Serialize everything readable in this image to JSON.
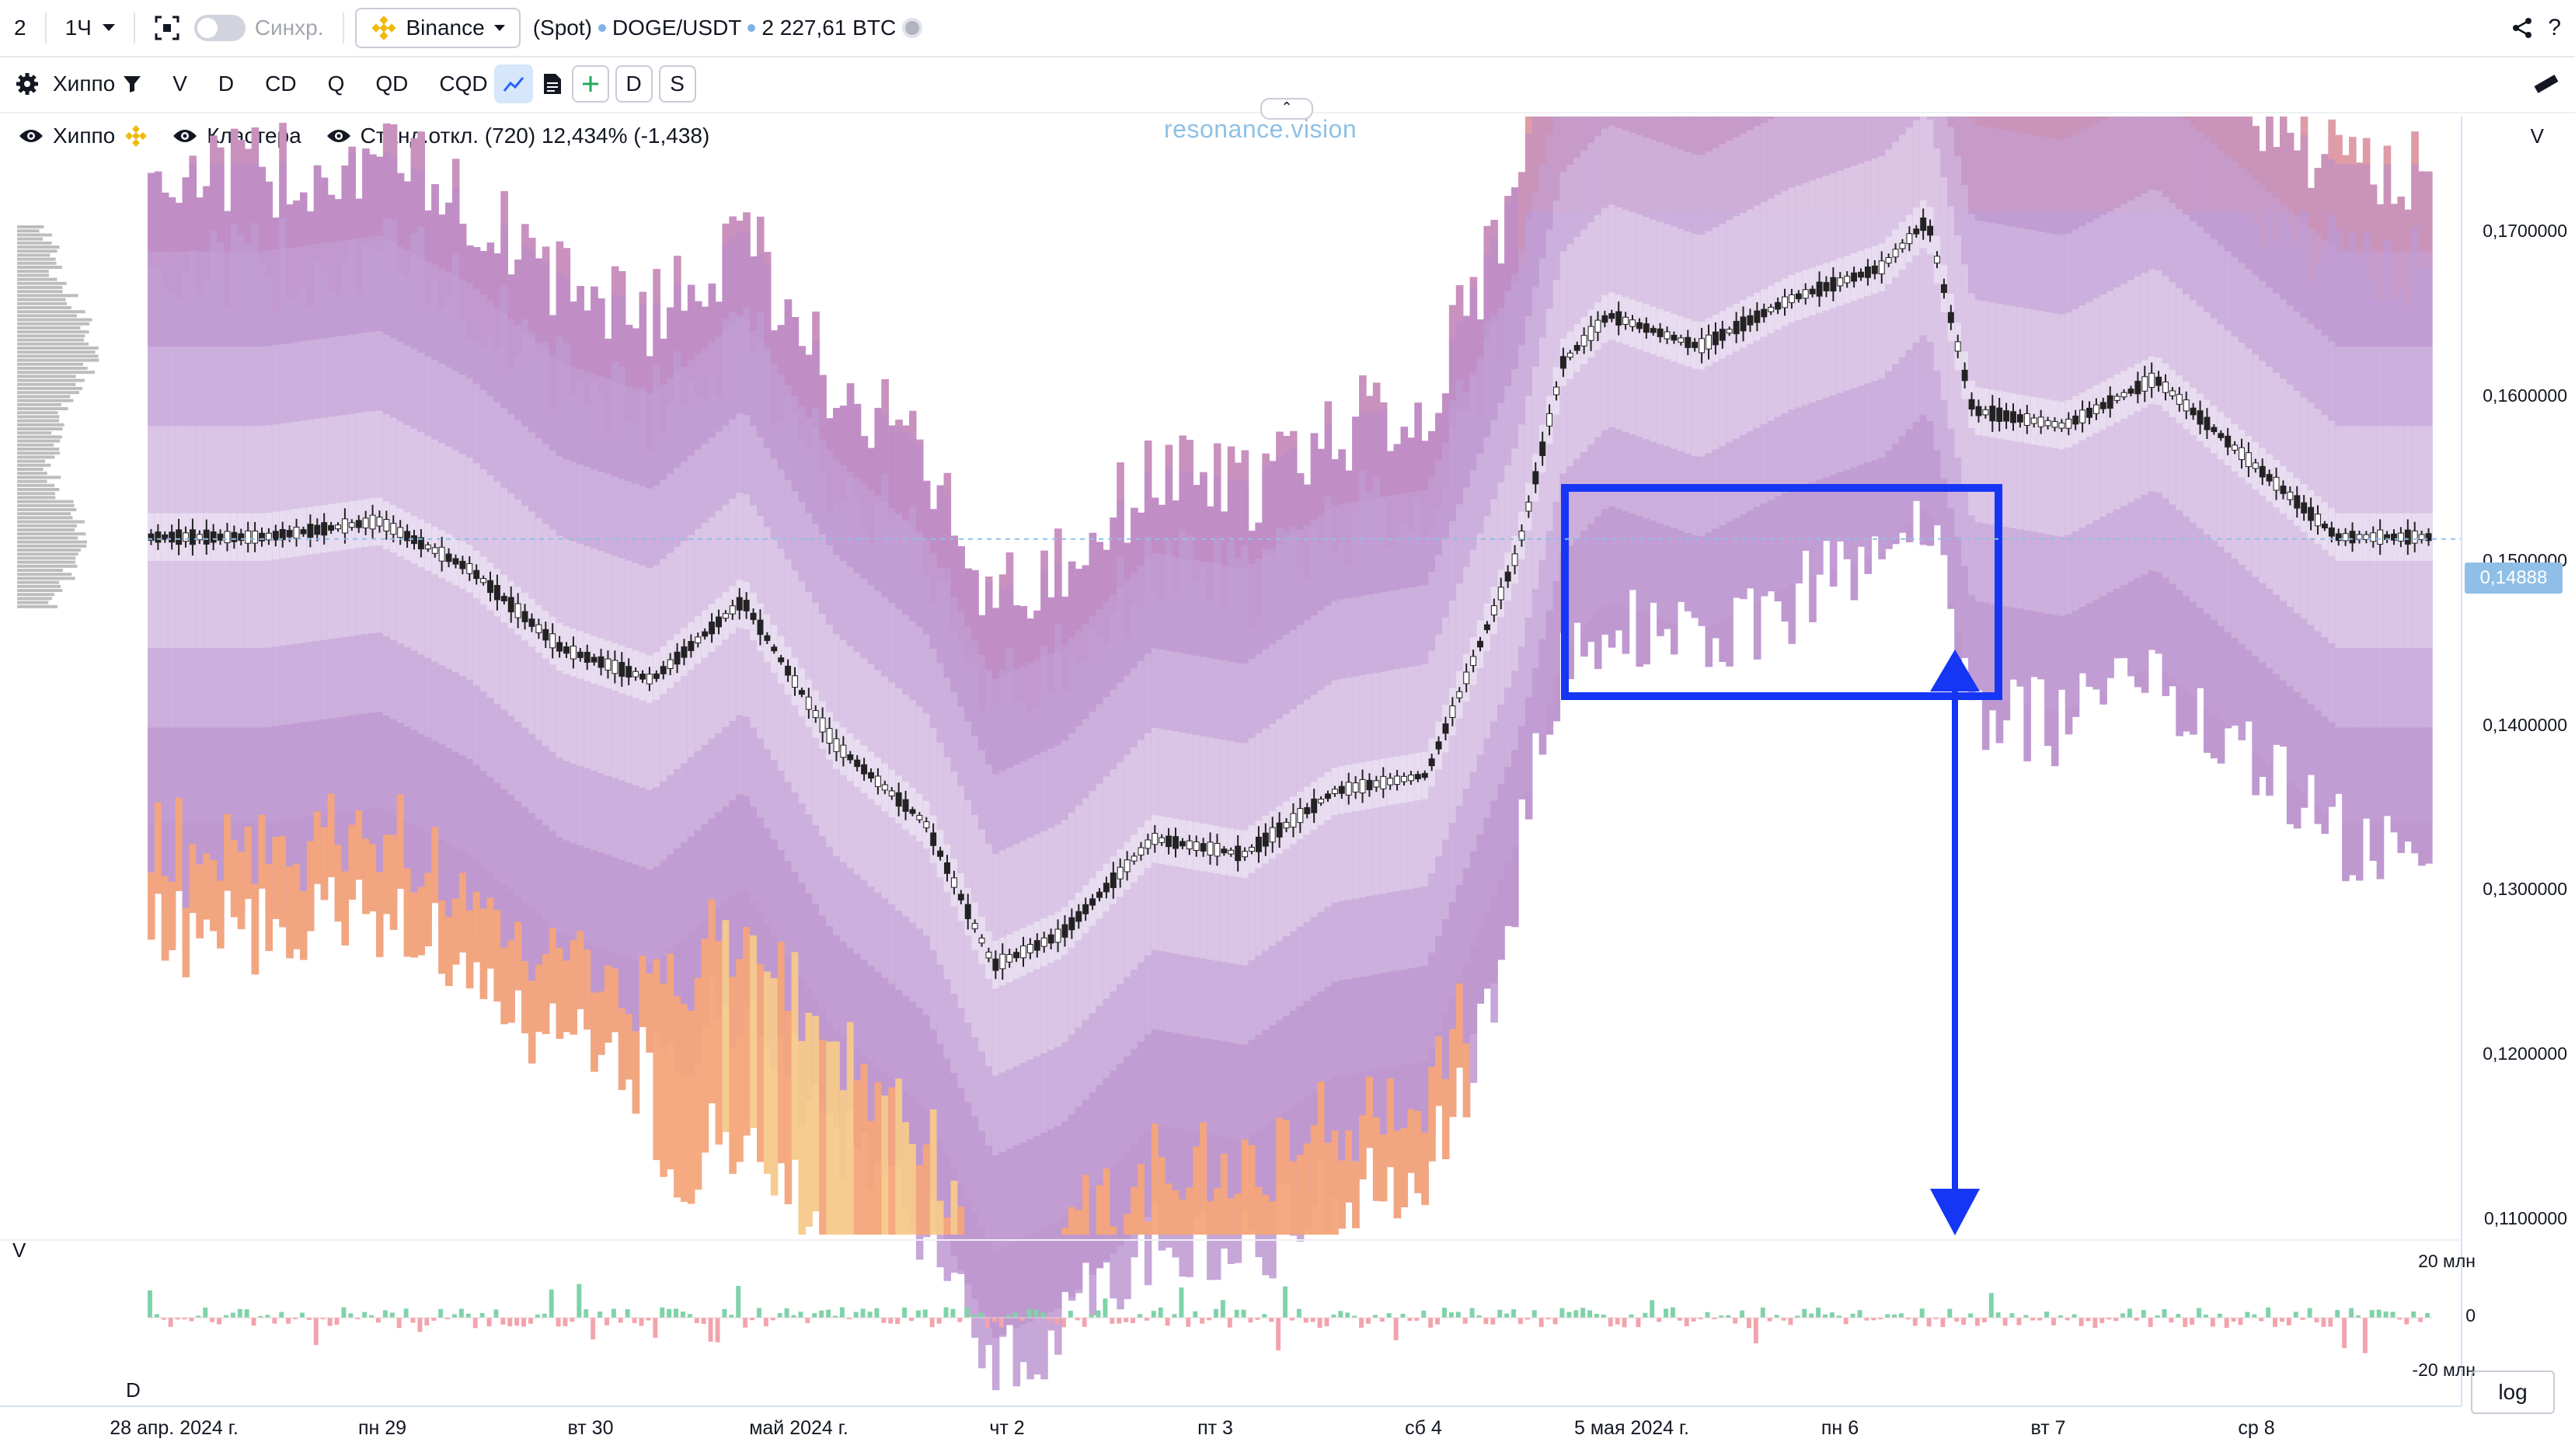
{
  "topbar": {
    "layout_count": "2",
    "interval": "1Ч",
    "sync_label": "Синхр.",
    "exchange": "Binance",
    "market_type": "(Spot)",
    "symbol": "DOGE/USDT",
    "volume": "2 227,61 BTC"
  },
  "toolbar": {
    "indicator_name": "Хиппо",
    "items": [
      "V",
      "D",
      "CD",
      "Q",
      "QD",
      "CQD"
    ],
    "d_label": "D",
    "s_label": "S"
  },
  "legend": {
    "hippo": "Хиппо",
    "clusters": "Кластера",
    "stddev": "Станд.откл. (720) 12,434% (-1,438)"
  },
  "watermark": "resonance.vision",
  "price_axis": {
    "header": "V",
    "labels": [
      "0,1700000",
      "0,1600000",
      "0,1500000",
      "0,1400000",
      "0,1300000",
      "0,1200000",
      "0,1100000"
    ],
    "current_price": "0,14888"
  },
  "volume_panel": {
    "label": "V",
    "d_label": "D",
    "labels": [
      "20 млн",
      "0",
      "-20 млн"
    ]
  },
  "time_axis": {
    "labels": [
      "28 апр. 2024 г.",
      "пн 29",
      "вт 30",
      "май 2024 г.",
      "чт 2",
      "пт 3",
      "сб 4",
      "5 мая 2024 г.",
      "пн 6",
      "вт 7",
      "ср 8"
    ]
  },
  "log_button": "log",
  "colors": {
    "accent": "#2962ff",
    "annotation": "#1636f5",
    "buy": "#7ed3a8",
    "sell": "#f3a3ac",
    "cluster_purple": "#b58ec8",
    "cluster_orange": "#f4a57a",
    "price_tag": "#8fbfe6"
  },
  "chart_data": {
    "type": "heatmap",
    "price_ticks": [
      0.17,
      0.16,
      0.15,
      0.14,
      0.13,
      0.12,
      0.11
    ],
    "ylim": [
      0.105,
      0.1755
    ],
    "current_price": 0.14888,
    "price_path": [
      [
        0,
        0.149
      ],
      [
        0.05,
        0.149
      ],
      [
        0.1,
        0.15
      ],
      [
        0.14,
        0.147
      ],
      [
        0.18,
        0.142
      ],
      [
        0.22,
        0.14
      ],
      [
        0.26,
        0.145
      ],
      [
        0.3,
        0.136
      ],
      [
        0.34,
        0.131
      ],
      [
        0.37,
        0.122
      ],
      [
        0.4,
        0.124
      ],
      [
        0.44,
        0.13
      ],
      [
        0.48,
        0.129
      ],
      [
        0.52,
        0.133
      ],
      [
        0.56,
        0.134
      ],
      [
        0.6,
        0.148
      ],
      [
        0.62,
        0.16
      ],
      [
        0.64,
        0.163
      ],
      [
        0.68,
        0.161
      ],
      [
        0.72,
        0.164
      ],
      [
        0.76,
        0.166
      ],
      [
        0.78,
        0.169
      ],
      [
        0.8,
        0.157
      ],
      [
        0.84,
        0.156
      ],
      [
        0.88,
        0.159
      ],
      [
        0.92,
        0.154
      ],
      [
        0.96,
        0.149
      ],
      [
        1,
        0.149
      ]
    ],
    "volume_ylim": [
      -30,
      30
    ]
  }
}
